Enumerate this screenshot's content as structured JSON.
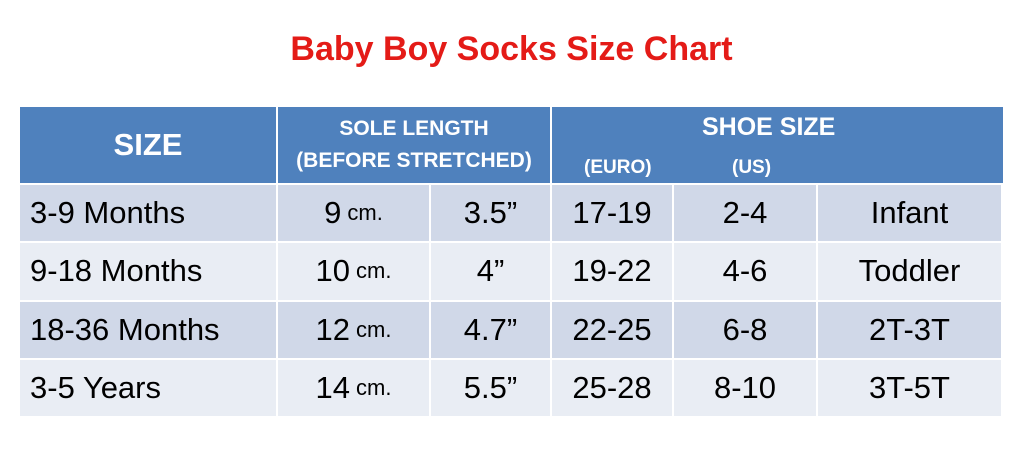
{
  "title": "Baby Boy Socks Size Chart",
  "table": {
    "header": {
      "size": "SIZE",
      "sole": [
        "SOLE LENGTH",
        "(BEFORE STRETCHED)"
      ],
      "shoe": "SHOE SIZE",
      "euro": "(EURO)",
      "us": "(US)"
    },
    "rows": [
      [
        "3-9 Months",
        [
          "9",
          "cm."
        ],
        "3.5”",
        "17-19",
        "2-4",
        "Infant"
      ],
      [
        "9-18 Months",
        [
          "10",
          "cm."
        ],
        "4”",
        "19-22",
        "4-6",
        "Toddler"
      ],
      [
        "18-36 Months",
        [
          "12",
          "cm."
        ],
        "4.7”",
        "22-25",
        "6-8",
        "2T-3T"
      ],
      [
        "3-5 Years",
        [
          "14",
          "cm."
        ],
        "5.5”",
        "25-28",
        "8-10",
        "3T-5T"
      ]
    ]
  }
}
